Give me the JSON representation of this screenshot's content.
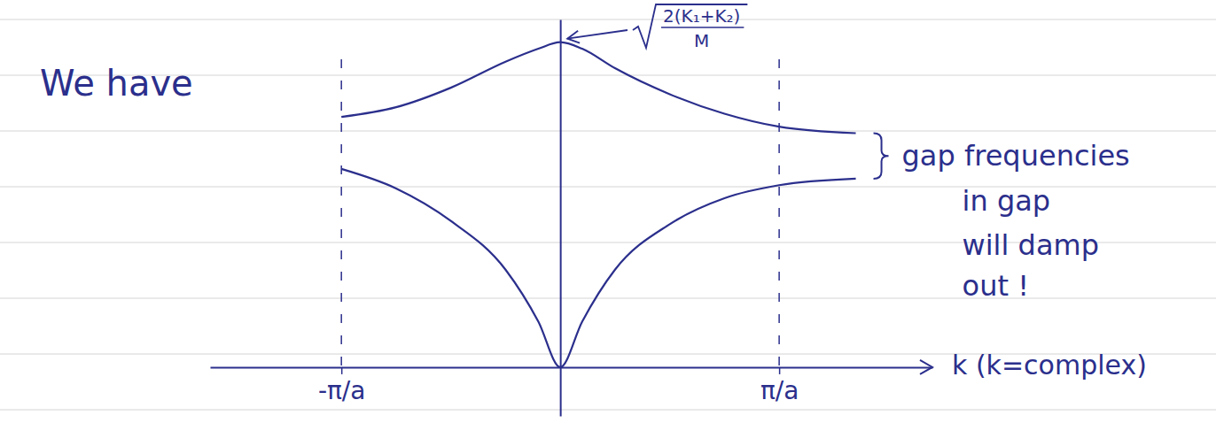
{
  "chart_data": {
    "type": "line",
    "x_label": "k (k=complex)",
    "annotations": [
      {
        "text": "We have"
      },
      {
        "numerator": "2(K₁+K₂)",
        "denominator": "M"
      },
      {
        "text": "gap frequencies"
      },
      {
        "text": "in gap"
      },
      {
        "text": "will damp"
      },
      {
        "text": "out !"
      }
    ],
    "x": [
      -1,
      -0.75,
      -0.5,
      -0.25,
      -0.1,
      0,
      0.1,
      0.25,
      0.5,
      0.75,
      1,
      1.35
    ],
    "series": [
      {
        "color": "#2b2f8c",
        "line_style": "solid",
        "values": [
          0.77,
          0.8,
          0.86,
          0.94,
          0.98,
          1,
          0.98,
          0.92,
          0.84,
          0.78,
          0.74,
          0.72
        ]
      },
      {
        "color": "#2b2f8c",
        "line_style": "solid",
        "values": [
          0.61,
          0.55,
          0.45,
          0.3,
          0.14,
          0,
          0.14,
          0.3,
          0.44,
          0.52,
          0.56,
          0.58
        ]
      }
    ],
    "xlim": [
      -1.6,
      1.7
    ],
    "ylim": [
      -0.15,
      1.07
    ],
    "xticks": [
      {
        "value": -1,
        "label": "-π/a"
      },
      {
        "value": 1,
        "label": "π/a"
      }
    ],
    "grid": true,
    "tick_labels": "x"
  }
}
